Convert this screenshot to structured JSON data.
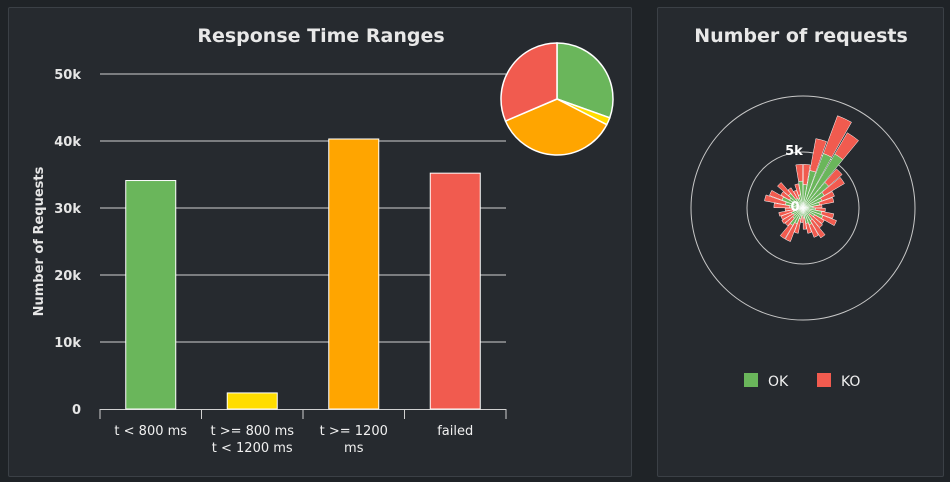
{
  "bar_panel": {
    "title": "Response Time Ranges"
  },
  "polar_panel": {
    "title": "Number of requests",
    "center_label": "0",
    "ring_label": "5k",
    "legend": [
      {
        "label": "OK",
        "color": "#6ab65b"
      },
      {
        "label": "KO",
        "color": "#f15b4f"
      }
    ]
  },
  "chart_data": [
    {
      "type": "bar",
      "title": "Response Time Ranges",
      "ylabel": "Number of Requests",
      "xlabel": "",
      "ylim": [
        0,
        50000
      ],
      "yticks": [
        {
          "value": 0,
          "label": "0"
        },
        {
          "value": 10000,
          "label": "10k"
        },
        {
          "value": 20000,
          "label": "20k"
        },
        {
          "value": 30000,
          "label": "30k"
        },
        {
          "value": 40000,
          "label": "40k"
        },
        {
          "value": 50000,
          "label": "50k"
        }
      ],
      "categories": [
        [
          "t < 800 ms"
        ],
        [
          "t >= 800 ms",
          "t < 1200 ms"
        ],
        [
          "t >= 1200",
          "ms"
        ],
        [
          "failed"
        ]
      ],
      "values": [
        34100,
        2400,
        40300,
        35200
      ],
      "colors": [
        "#6ab65b",
        "#ffdd00",
        "#ffa500",
        "#f15b4f"
      ],
      "grid": true
    },
    {
      "type": "pie",
      "labels": [
        "t < 800 ms",
        "t >= 800 ms t < 1200 ms",
        "t >= 1200 ms",
        "failed"
      ],
      "values": [
        34100,
        2400,
        40300,
        35200
      ],
      "colors": [
        "#6ab65b",
        "#ffdd00",
        "#ffa500",
        "#f15b4f"
      ]
    },
    {
      "type": "polar-bar",
      "title": "Number of requests",
      "series": [
        {
          "name": "OK",
          "color": "#6ab65b",
          "values": [
            2100,
            3400,
            5200,
            5600,
            3000,
            2200,
            1800,
            1500,
            900,
            1100,
            1700,
            1900,
            1200,
            800,
            1300,
            1600,
            1400,
            900,
            700,
            1000,
            1500,
            1800,
            1200,
            1000,
            1100,
            900,
            800,
            1200,
            1600,
            2000,
            1400,
            1700,
            1000,
            900,
            1200,
            2400
          ]
        },
        {
          "name": "KO",
          "color": "#f15b4f",
          "values": [
            1800,
            2900,
            3600,
            2200,
            1600,
            2100,
            1200,
            1300,
            800,
            900,
            1100,
            1300,
            1000,
            1500,
            1800,
            1200,
            900,
            1000,
            600,
            1300,
            1700,
            1400,
            900,
            1200,
            1000,
            1300,
            800,
            1400,
            1900,
            1200,
            900,
            1300,
            1100,
            800,
            1000,
            1500
          ]
        }
      ],
      "rmax": 5000
    }
  ]
}
